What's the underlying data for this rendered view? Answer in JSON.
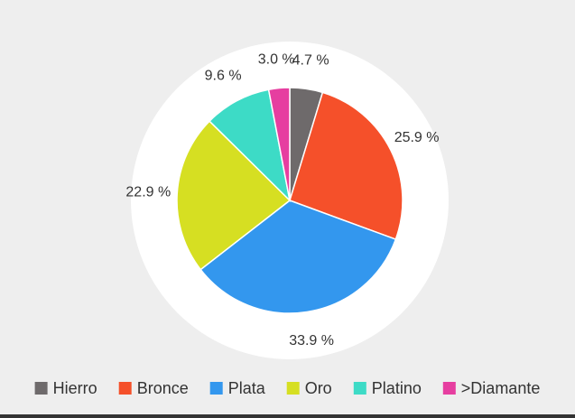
{
  "chart_data": {
    "type": "pie",
    "title": "",
    "legend_position": "bottom",
    "slices": [
      {
        "name": "Hierro",
        "value": 4.7,
        "label": "4.7 %",
        "color": "#6e6a6b"
      },
      {
        "name": "Bronce",
        "value": 25.9,
        "label": "25.9 %",
        "color": "#f5502a"
      },
      {
        "name": "Plata",
        "value": 33.9,
        "label": "33.9 %",
        "color": "#3397ee"
      },
      {
        "name": "Oro",
        "value": 22.9,
        "label": "22.9 %",
        "color": "#d6df22"
      },
      {
        "name": "Platino",
        "value": 9.6,
        "label": "9.6 %",
        "color": "#3ddbc6"
      },
      {
        "name": ">Diamante",
        "value": 3.0,
        "label": "3.0 %",
        "color": "#e63ea0"
      }
    ]
  }
}
